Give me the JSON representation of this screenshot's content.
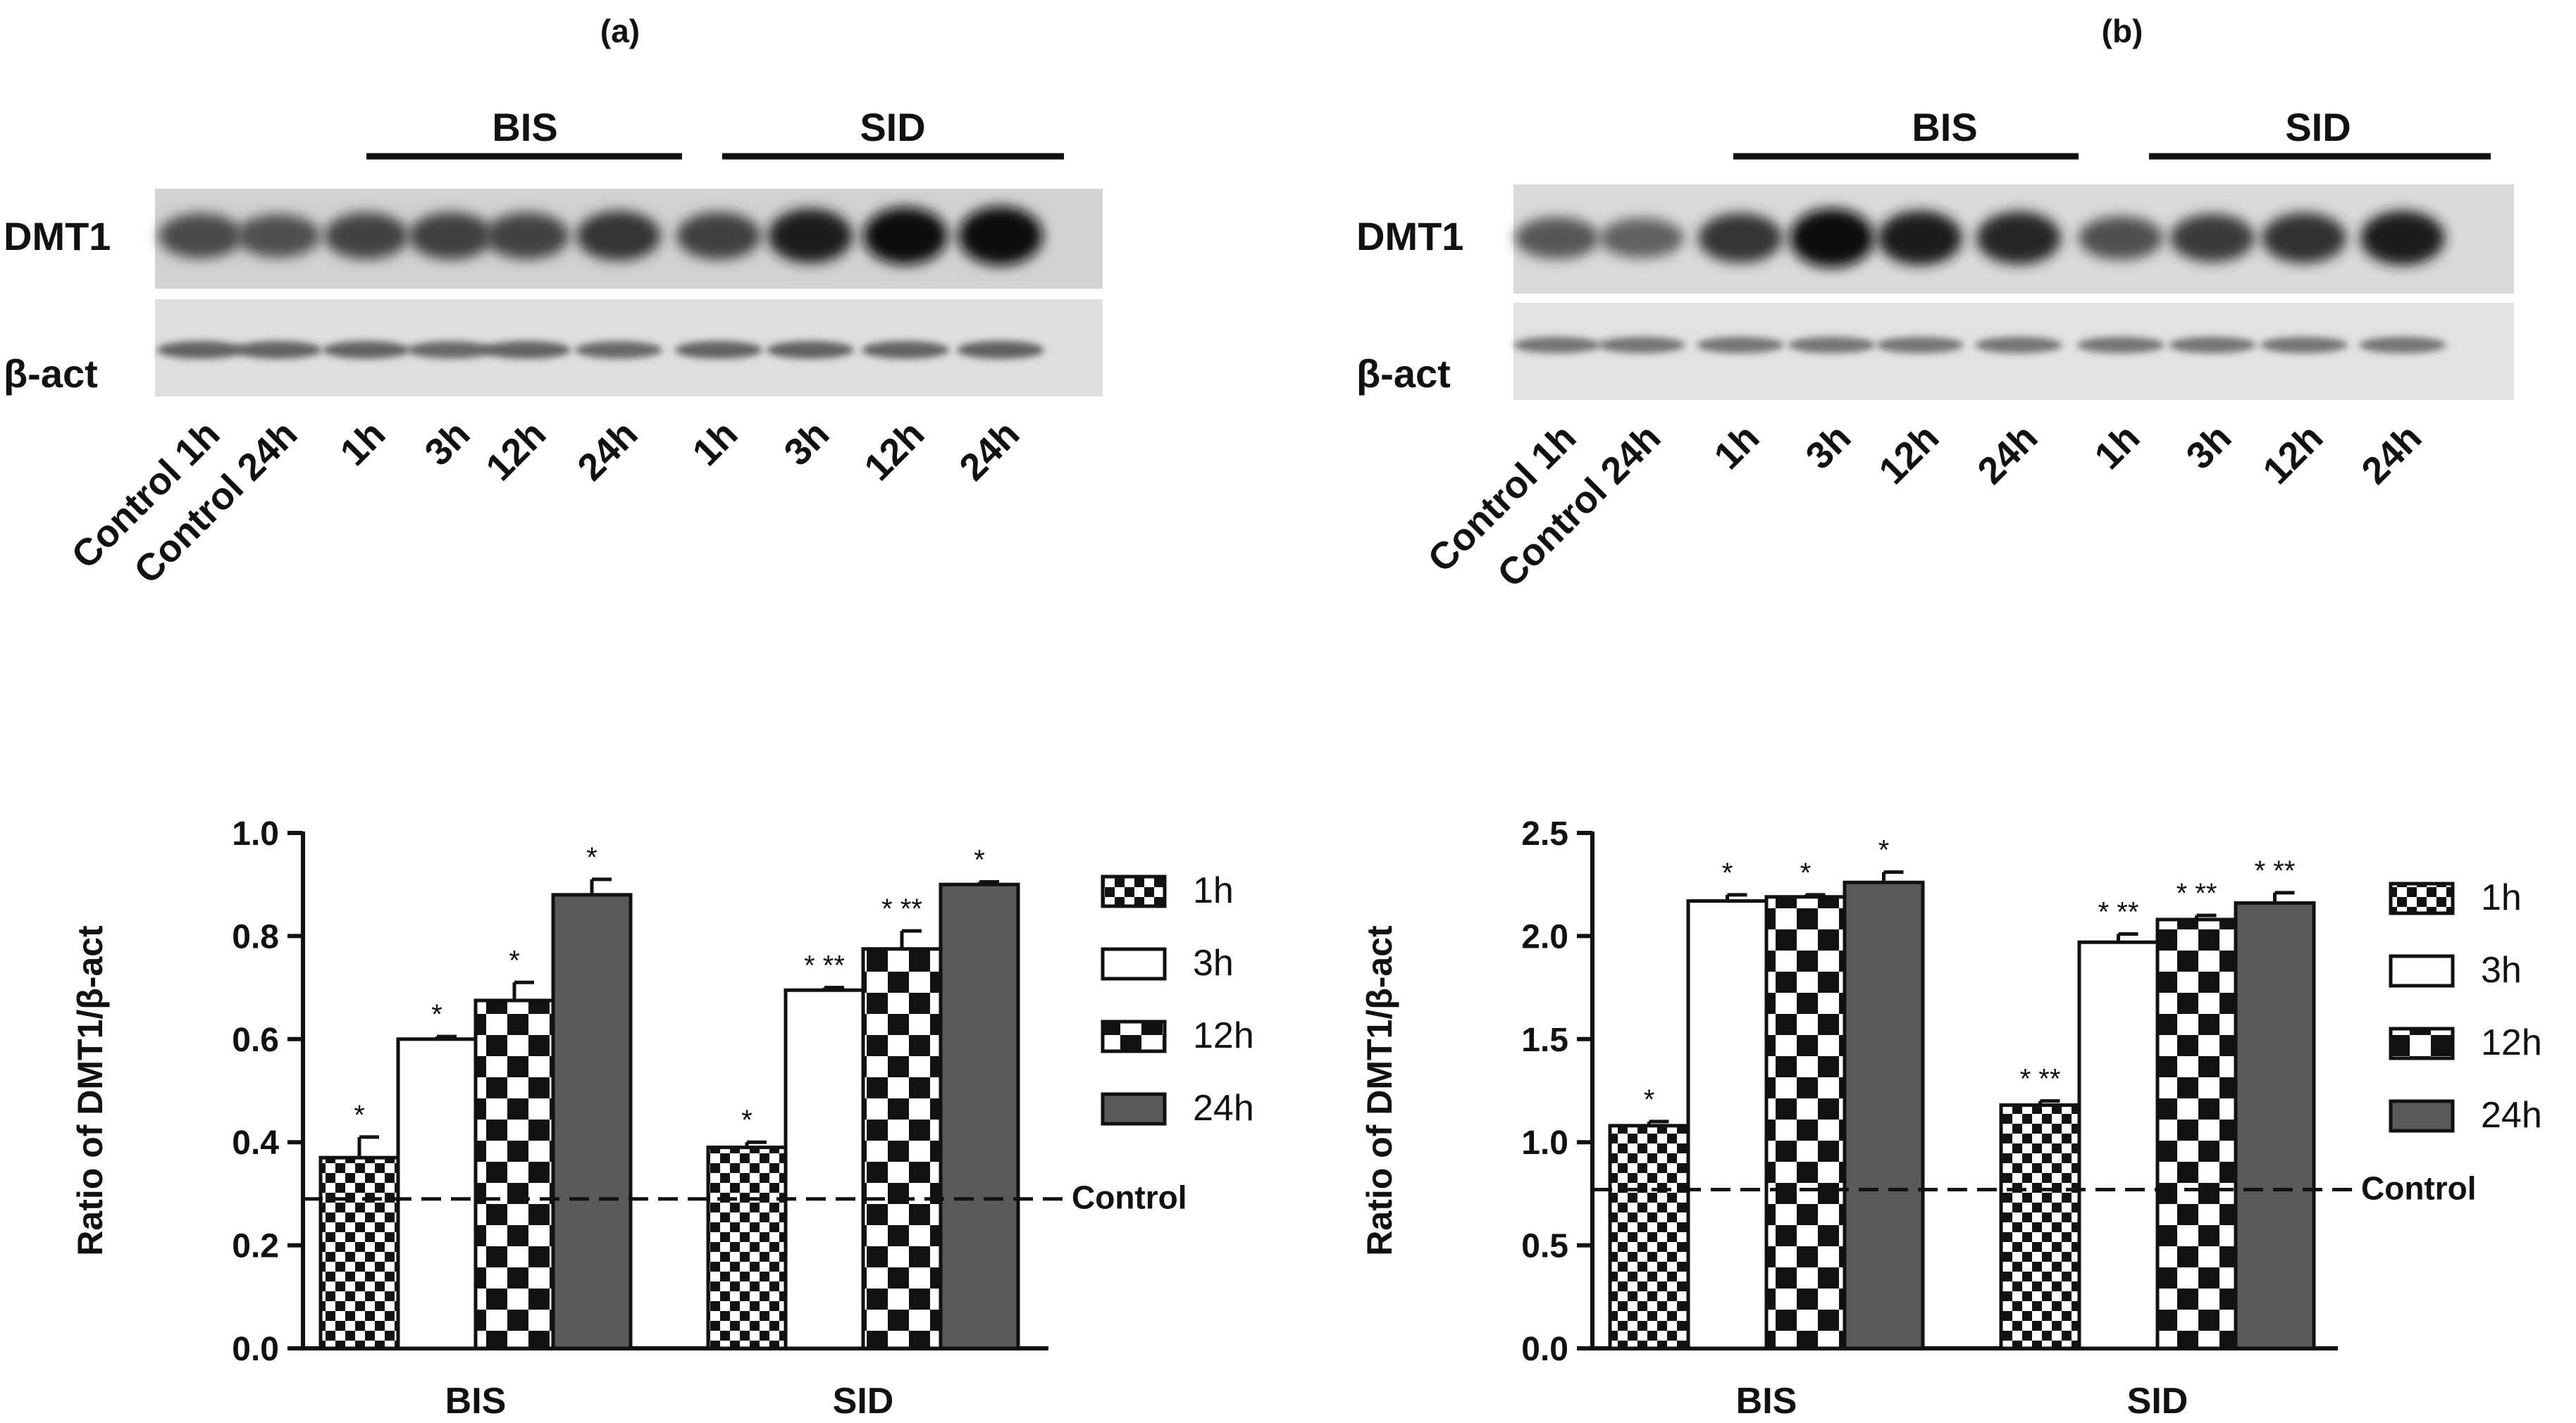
{
  "panels": [
    {
      "label": "(a)",
      "blot": {
        "group_labels": [
          "BIS",
          "SID"
        ],
        "row_labels": [
          "DMT1",
          "β-act"
        ],
        "lane_labels": [
          "Control 1h",
          "Control 24h",
          "1h",
          "3h",
          "12h",
          "24h",
          "1h",
          "3h",
          "12h",
          "24h"
        ],
        "dmt1_intensity": [
          0.55,
          0.5,
          0.6,
          0.62,
          0.6,
          0.7,
          0.62,
          0.85,
          0.95,
          1.0
        ],
        "bact_intensity": [
          0.6,
          0.6,
          0.6,
          0.55,
          0.6,
          0.55,
          0.6,
          0.6,
          0.6,
          0.62
        ]
      }
    },
    {
      "label": "(b)",
      "blot": {
        "group_labels": [
          "BIS",
          "SID"
        ],
        "row_labels": [
          "DMT1",
          "β-act"
        ],
        "lane_labels": [
          "Control 1h",
          "Control 24h",
          "1h",
          "3h",
          "12h",
          "24h",
          "1h",
          "3h",
          "12h",
          "24h"
        ],
        "dmt1_intensity": [
          0.45,
          0.38,
          0.7,
          1.0,
          0.85,
          0.8,
          0.5,
          0.65,
          0.72,
          0.85
        ],
        "bact_intensity": [
          0.45,
          0.45,
          0.45,
          0.45,
          0.45,
          0.45,
          0.45,
          0.45,
          0.45,
          0.45
        ]
      }
    }
  ],
  "chart_data": [
    {
      "type": "bar",
      "categories": [
        "BIS",
        "SID"
      ],
      "ylabel": "Ratio of DMT1/β-act",
      "ylim": [
        0,
        1.0
      ],
      "yticks": [
        "0.0",
        "0.2",
        "0.4",
        "0.6",
        "0.8",
        "1.0"
      ],
      "ytick_values": [
        0,
        0.2,
        0.4,
        0.6,
        0.8,
        1.0
      ],
      "control_value": 0.29,
      "control_label": "Control",
      "legend_position": "right",
      "series": [
        {
          "name": "1h",
          "pattern": "checker-small",
          "values": [
            0.37,
            0.39
          ],
          "errors": [
            0.04,
            0.01
          ],
          "annotations": [
            "*",
            "*"
          ]
        },
        {
          "name": "3h",
          "pattern": "white",
          "values": [
            0.6,
            0.695
          ],
          "errors": [
            0.005,
            0.005
          ],
          "annotations": [
            "*",
            "* **"
          ]
        },
        {
          "name": "12h",
          "pattern": "checker-large",
          "values": [
            0.675,
            0.775
          ],
          "errors": [
            0.035,
            0.035
          ],
          "annotations": [
            "*",
            "* **"
          ]
        },
        {
          "name": "24h",
          "pattern": "gray",
          "values": [
            0.88,
            0.9
          ],
          "errors": [
            0.03,
            0.005
          ],
          "annotations": [
            "*",
            "*"
          ]
        }
      ]
    },
    {
      "type": "bar",
      "categories": [
        "BIS",
        "SID"
      ],
      "ylabel": "Ratio of DMT1/β-act",
      "ylim": [
        0,
        2.5
      ],
      "yticks": [
        "0.0",
        "0.5",
        "1.0",
        "1.5",
        "2.0",
        "2.5"
      ],
      "ytick_values": [
        0,
        0.5,
        1.0,
        1.5,
        2.0,
        2.5
      ],
      "control_value": 0.77,
      "control_label": "Control",
      "legend_position": "right",
      "series": [
        {
          "name": "1h",
          "pattern": "checker-small",
          "values": [
            1.08,
            1.18
          ],
          "errors": [
            0.02,
            0.02
          ],
          "annotations": [
            "*",
            "* **"
          ]
        },
        {
          "name": "3h",
          "pattern": "white",
          "values": [
            2.17,
            1.97
          ],
          "errors": [
            0.03,
            0.04
          ],
          "annotations": [
            "*",
            "* **"
          ]
        },
        {
          "name": "12h",
          "pattern": "checker-large",
          "values": [
            2.19,
            2.08
          ],
          "errors": [
            0.01,
            0.02
          ],
          "annotations": [
            "*",
            "* **"
          ]
        },
        {
          "name": "24h",
          "pattern": "gray",
          "values": [
            2.26,
            2.16
          ],
          "errors": [
            0.05,
            0.05
          ],
          "annotations": [
            "*",
            "* **"
          ]
        }
      ]
    }
  ]
}
